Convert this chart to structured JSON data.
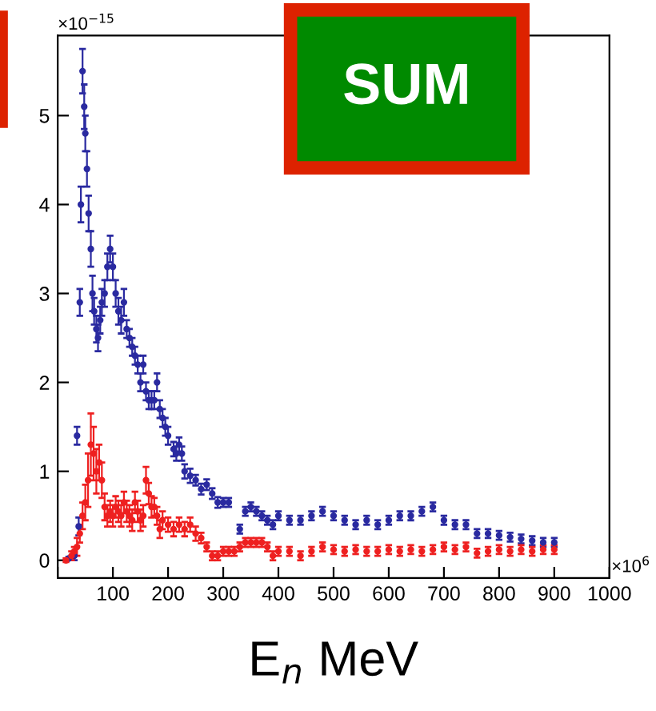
{
  "chart_data": {
    "type": "scatter",
    "xlabel": "E$_{n}$ MeV",
    "annotations": [
      "SUM",
      "×10$^{−15}$",
      "×10$^{6}$"
    ],
    "xlim": [
      0,
      1000
    ],
    "ylim": [
      -0.2,
      5.9
    ],
    "xticks": [
      {
        "value": 0,
        "label": null
      },
      100,
      200,
      300,
      400,
      500,
      600,
      700,
      800,
      900,
      1000
    ],
    "yticks": [
      0,
      1,
      2,
      3,
      4,
      5
    ],
    "marker": "circle",
    "grid": false,
    "legend": false,
    "series": [
      {
        "color": "#2a2aa0",
        "x": [
          20,
          30,
          35,
          38,
          40,
          42,
          45,
          48,
          50,
          53,
          56,
          60,
          63,
          66,
          70,
          73,
          77,
          80,
          85,
          90,
          95,
          100,
          105,
          110,
          115,
          120,
          125,
          130,
          135,
          140,
          145,
          150,
          155,
          160,
          165,
          170,
          175,
          180,
          185,
          190,
          195,
          200,
          210,
          215,
          220,
          225,
          230,
          240,
          250,
          260,
          270,
          280,
          290,
          300,
          310,
          330,
          340,
          350,
          360,
          370,
          380,
          390,
          400,
          420,
          440,
          460,
          480,
          500,
          520,
          540,
          560,
          580,
          600,
          620,
          640,
          660,
          680,
          700,
          720,
          740,
          760,
          780,
          800,
          820,
          840,
          860,
          880,
          900
        ],
        "values": [
          0.02,
          0.05,
          1.4,
          0.38,
          2.9,
          4.0,
          5.5,
          5.1,
          4.8,
          4.4,
          3.9,
          3.5,
          3.0,
          2.8,
          2.6,
          2.5,
          2.7,
          2.9,
          3.0,
          3.3,
          3.5,
          3.3,
          3.0,
          2.8,
          2.7,
          2.9,
          2.6,
          2.5,
          2.4,
          2.3,
          2.2,
          2.0,
          2.2,
          1.9,
          1.8,
          1.8,
          1.8,
          2.0,
          1.7,
          1.6,
          1.5,
          1.4,
          1.25,
          1.2,
          1.3,
          1.2,
          1.0,
          0.95,
          0.9,
          0.8,
          0.85,
          0.75,
          0.65,
          0.65,
          0.65,
          0.35,
          0.55,
          0.6,
          0.55,
          0.5,
          0.45,
          0.4,
          0.5,
          0.45,
          0.45,
          0.5,
          0.55,
          0.5,
          0.45,
          0.4,
          0.45,
          0.4,
          0.45,
          0.5,
          0.5,
          0.55,
          0.6,
          0.45,
          0.4,
          0.4,
          0.3,
          0.3,
          0.28,
          0.26,
          0.24,
          0.22,
          0.2,
          0.2
        ],
        "errors": [
          0.02,
          0.05,
          0.1,
          0.1,
          0.15,
          0.2,
          0.25,
          0.25,
          0.2,
          0.2,
          0.2,
          0.2,
          0.2,
          0.15,
          0.15,
          0.15,
          0.15,
          0.15,
          0.15,
          0.15,
          0.15,
          0.15,
          0.15,
          0.15,
          0.15,
          0.15,
          0.1,
          0.1,
          0.1,
          0.1,
          0.1,
          0.1,
          0.1,
          0.1,
          0.1,
          0.1,
          0.1,
          0.1,
          0.1,
          0.1,
          0.1,
          0.1,
          0.08,
          0.08,
          0.08,
          0.08,
          0.08,
          0.08,
          0.06,
          0.06,
          0.06,
          0.06,
          0.06,
          0.05,
          0.05,
          0.05,
          0.05,
          0.05,
          0.05,
          0.05,
          0.05,
          0.05,
          0.05,
          0.05,
          0.05,
          0.05,
          0.05,
          0.05,
          0.05,
          0.05,
          0.05,
          0.05,
          0.05,
          0.05,
          0.05,
          0.05,
          0.05,
          0.05,
          0.05,
          0.05,
          0.05,
          0.05,
          0.05,
          0.05,
          0.05,
          0.05,
          0.05,
          0.05
        ]
      },
      {
        "color": "#ee2020",
        "x": [
          15,
          25,
          30,
          35,
          40,
          45,
          50,
          55,
          60,
          65,
          70,
          75,
          80,
          85,
          90,
          95,
          100,
          105,
          110,
          115,
          120,
          125,
          130,
          135,
          140,
          145,
          150,
          155,
          160,
          165,
          170,
          175,
          180,
          185,
          190,
          200,
          210,
          220,
          230,
          240,
          250,
          260,
          270,
          280,
          290,
          300,
          310,
          320,
          330,
          340,
          350,
          360,
          370,
          380,
          390,
          400,
          420,
          440,
          460,
          480,
          500,
          520,
          540,
          560,
          580,
          600,
          620,
          640,
          660,
          680,
          700,
          720,
          740,
          760,
          780,
          800,
          820,
          840,
          860,
          880,
          900
        ],
        "values": [
          0.0,
          0.05,
          0.1,
          0.15,
          0.3,
          0.5,
          0.65,
          0.9,
          1.3,
          1.2,
          1.0,
          1.1,
          0.9,
          0.6,
          0.5,
          0.55,
          0.5,
          0.6,
          0.55,
          0.5,
          0.65,
          0.55,
          0.5,
          0.45,
          0.65,
          0.55,
          0.45,
          0.5,
          0.9,
          0.75,
          0.6,
          0.6,
          0.5,
          0.35,
          0.45,
          0.4,
          0.35,
          0.4,
          0.35,
          0.4,
          0.3,
          0.25,
          0.15,
          0.05,
          0.05,
          0.1,
          0.1,
          0.1,
          0.15,
          0.2,
          0.2,
          0.2,
          0.2,
          0.15,
          0.05,
          0.1,
          0.1,
          0.05,
          0.1,
          0.15,
          0.12,
          0.1,
          0.12,
          0.1,
          0.1,
          0.12,
          0.1,
          0.12,
          0.1,
          0.12,
          0.15,
          0.12,
          0.15,
          0.08,
          0.1,
          0.12,
          0.1,
          0.12,
          0.1,
          0.12,
          0.12
        ],
        "errors": [
          0.02,
          0.05,
          0.05,
          0.1,
          0.1,
          0.15,
          0.2,
          0.3,
          0.35,
          0.3,
          0.25,
          0.2,
          0.2,
          0.15,
          0.12,
          0.12,
          0.12,
          0.12,
          0.12,
          0.12,
          0.12,
          0.12,
          0.12,
          0.12,
          0.12,
          0.12,
          0.12,
          0.12,
          0.15,
          0.12,
          0.12,
          0.1,
          0.1,
          0.1,
          0.1,
          0.08,
          0.08,
          0.08,
          0.08,
          0.08,
          0.08,
          0.06,
          0.05,
          0.05,
          0.05,
          0.05,
          0.05,
          0.05,
          0.05,
          0.05,
          0.05,
          0.05,
          0.05,
          0.05,
          0.05,
          0.05,
          0.05,
          0.05,
          0.05,
          0.05,
          0.05,
          0.05,
          0.05,
          0.05,
          0.05,
          0.05,
          0.05,
          0.05,
          0.05,
          0.05,
          0.05,
          0.05,
          0.05,
          0.05,
          0.05,
          0.05,
          0.05,
          0.05,
          0.05,
          0.05,
          0.05
        ]
      }
    ]
  }
}
